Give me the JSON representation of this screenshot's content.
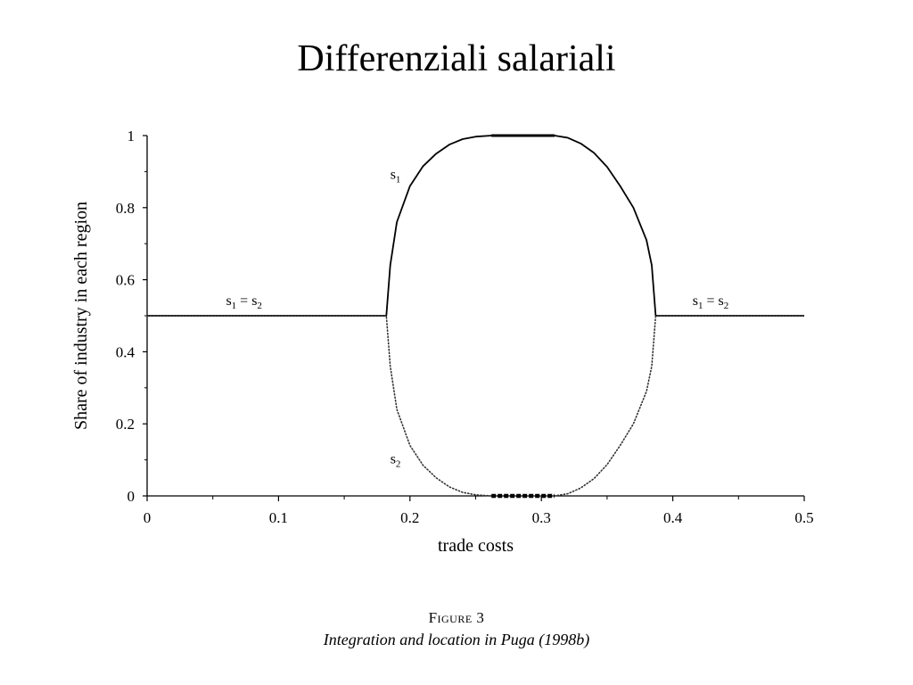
{
  "slide": {
    "title": "Differenziali salariali"
  },
  "caption": {
    "figure_label": "Figure 3",
    "figure_title": "Integration and location in Puga (1998b)"
  },
  "chart_data": {
    "type": "line",
    "xlabel": "trade costs",
    "ylabel": "Share of industry in each region",
    "xlim": [
      0,
      0.5
    ],
    "ylim": [
      0,
      1
    ],
    "xticks": [
      "0",
      "0.1",
      "0.2",
      "0.3",
      "0.4",
      "0.5"
    ],
    "yticks": [
      "0",
      "0.2",
      "0.4",
      "0.6",
      "0.8",
      "1"
    ],
    "grid": false,
    "series": [
      {
        "name": "s1",
        "style": "solid",
        "x": [
          0,
          0.05,
          0.1,
          0.15,
          0.182,
          0.185,
          0.19,
          0.2,
          0.21,
          0.22,
          0.23,
          0.24,
          0.25,
          0.262,
          0.28,
          0.3,
          0.31,
          0.32,
          0.33,
          0.34,
          0.35,
          0.36,
          0.37,
          0.38,
          0.384,
          0.387,
          0.4,
          0.45,
          0.5
        ],
        "y": [
          0.5,
          0.5,
          0.5,
          0.5,
          0.5,
          0.64,
          0.76,
          0.86,
          0.915,
          0.95,
          0.975,
          0.99,
          0.997,
          1.0,
          1.0,
          1.0,
          1.0,
          0.994,
          0.978,
          0.952,
          0.913,
          0.86,
          0.8,
          0.71,
          0.64,
          0.5,
          0.5,
          0.5,
          0.5
        ]
      },
      {
        "name": "s2",
        "style": "dotted",
        "x": [
          0,
          0.05,
          0.1,
          0.15,
          0.182,
          0.185,
          0.19,
          0.2,
          0.21,
          0.22,
          0.23,
          0.24,
          0.25,
          0.262,
          0.28,
          0.3,
          0.31,
          0.32,
          0.33,
          0.34,
          0.35,
          0.36,
          0.37,
          0.38,
          0.384,
          0.387,
          0.4,
          0.45,
          0.5
        ],
        "y": [
          0.5,
          0.5,
          0.5,
          0.5,
          0.5,
          0.36,
          0.24,
          0.14,
          0.085,
          0.05,
          0.025,
          0.01,
          0.003,
          0.0,
          0.0,
          0.0,
          0.0,
          0.006,
          0.022,
          0.048,
          0.087,
          0.14,
          0.2,
          0.29,
          0.36,
          0.5,
          0.5,
          0.5,
          0.5
        ]
      }
    ],
    "annotations": [
      {
        "text": "s",
        "sub": "1",
        "tail": "",
        "x": 0.185,
        "y": 0.88
      },
      {
        "text": "s",
        "sub": "2",
        "tail": "",
        "x": 0.185,
        "y": 0.09
      },
      {
        "text": "s",
        "sub": "1",
        "tail": " = s",
        "sub2": "2",
        "x": 0.06,
        "y": 0.53
      },
      {
        "text": "s",
        "sub": "1",
        "tail": " = s",
        "sub2": "2",
        "x": 0.415,
        "y": 0.53
      }
    ]
  }
}
